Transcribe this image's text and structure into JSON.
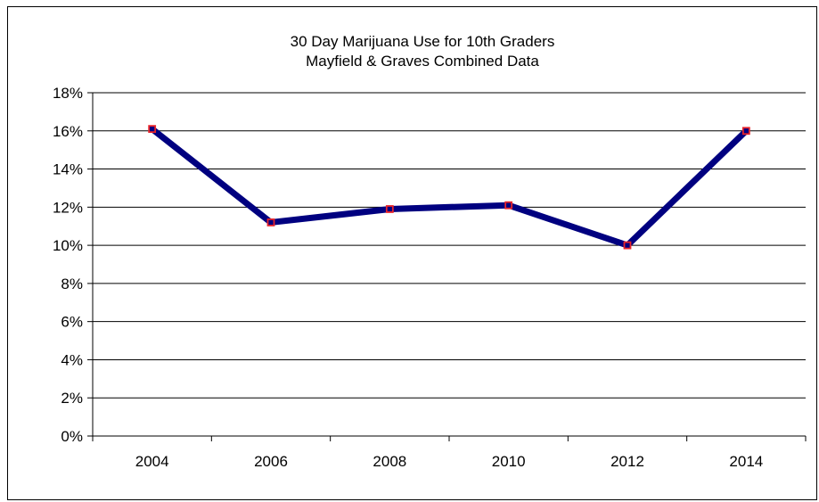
{
  "chart_data": {
    "type": "line",
    "title": "30 Day Marijuana Use for 10th Graders",
    "subtitle": "Mayfield & Graves Combined Data",
    "xlabel": "",
    "ylabel": "",
    "categories": [
      "2004",
      "2006",
      "2008",
      "2010",
      "2012",
      "2014"
    ],
    "series": [
      {
        "values": [
          16.1,
          11.2,
          11.9,
          12.1,
          10.0,
          16.0
        ],
        "line_color": "#000080",
        "marker_color": "#e8232a"
      }
    ],
    "ylim": [
      0,
      18
    ],
    "y_ticks": [
      "0%",
      "2%",
      "4%",
      "6%",
      "8%",
      "10%",
      "12%",
      "14%",
      "16%",
      "18%"
    ],
    "grid": true,
    "legend": "none"
  }
}
